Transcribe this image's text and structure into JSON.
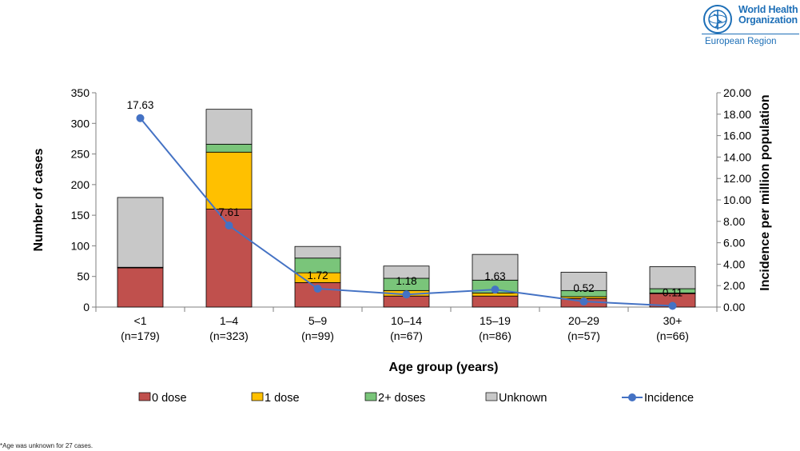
{
  "logo": {
    "org_line1": "World Health",
    "org_line2": "Organization",
    "region": "European Region",
    "emblem_icon": "who-emblem-icon",
    "color": "#1d6fb7"
  },
  "footnote": "*Age was unknown for 27 cases.",
  "chart_data": {
    "type": "bar",
    "stacked": true,
    "title": "",
    "xlabel": "Age group (years)",
    "ylabel": "Number of cases",
    "y2label": "Incidence per million population",
    "ylim": [
      0,
      350
    ],
    "yticks": [
      "0",
      "50",
      "100",
      "150",
      "200",
      "250",
      "300",
      "350"
    ],
    "y2lim": [
      0,
      20
    ],
    "y2ticks": [
      "0.00",
      "2.00",
      "4.00",
      "6.00",
      "8.00",
      "10.00",
      "12.00",
      "14.00",
      "16.00",
      "18.00",
      "20.00"
    ],
    "grid": false,
    "legend_position": "bottom",
    "categories": [
      {
        "label": "<1",
        "n": "(n=179)"
      },
      {
        "label": "1–4",
        "n": "(n=323)"
      },
      {
        "label": "5–9",
        "n": "(n=99)"
      },
      {
        "label": "10–14",
        "n": "(n=67)"
      },
      {
        "label": "15–19",
        "n": "(n=86)"
      },
      {
        "label": "20–29",
        "n": "(n=57)"
      },
      {
        "label": "30+",
        "n": "(n=66)"
      }
    ],
    "series": [
      {
        "name": "0 dose",
        "color": "#c0504d",
        "values": [
          64,
          160,
          40,
          18,
          18,
          14,
          22
        ]
      },
      {
        "name": "1 dose",
        "color": "#ffc000",
        "values": [
          1,
          93,
          16,
          9,
          5,
          3,
          1
        ]
      },
      {
        "name": "2+ doses",
        "color": "#7ac57a",
        "values": [
          0,
          13,
          24,
          20,
          21,
          10,
          7
        ]
      },
      {
        "name": "Unknown",
        "color": "#c8c8c8",
        "values": [
          114,
          57,
          19,
          20,
          42,
          30,
          36
        ]
      }
    ],
    "line_series": {
      "name": "Incidence",
      "color": "#4472c4",
      "axis": "right",
      "values": [
        17.63,
        7.61,
        1.72,
        1.18,
        1.63,
        0.52,
        0.11
      ],
      "labels": [
        "17.63",
        "7.61",
        "1.72",
        "1.18",
        "1.63",
        "0.52",
        "0.11"
      ]
    }
  }
}
